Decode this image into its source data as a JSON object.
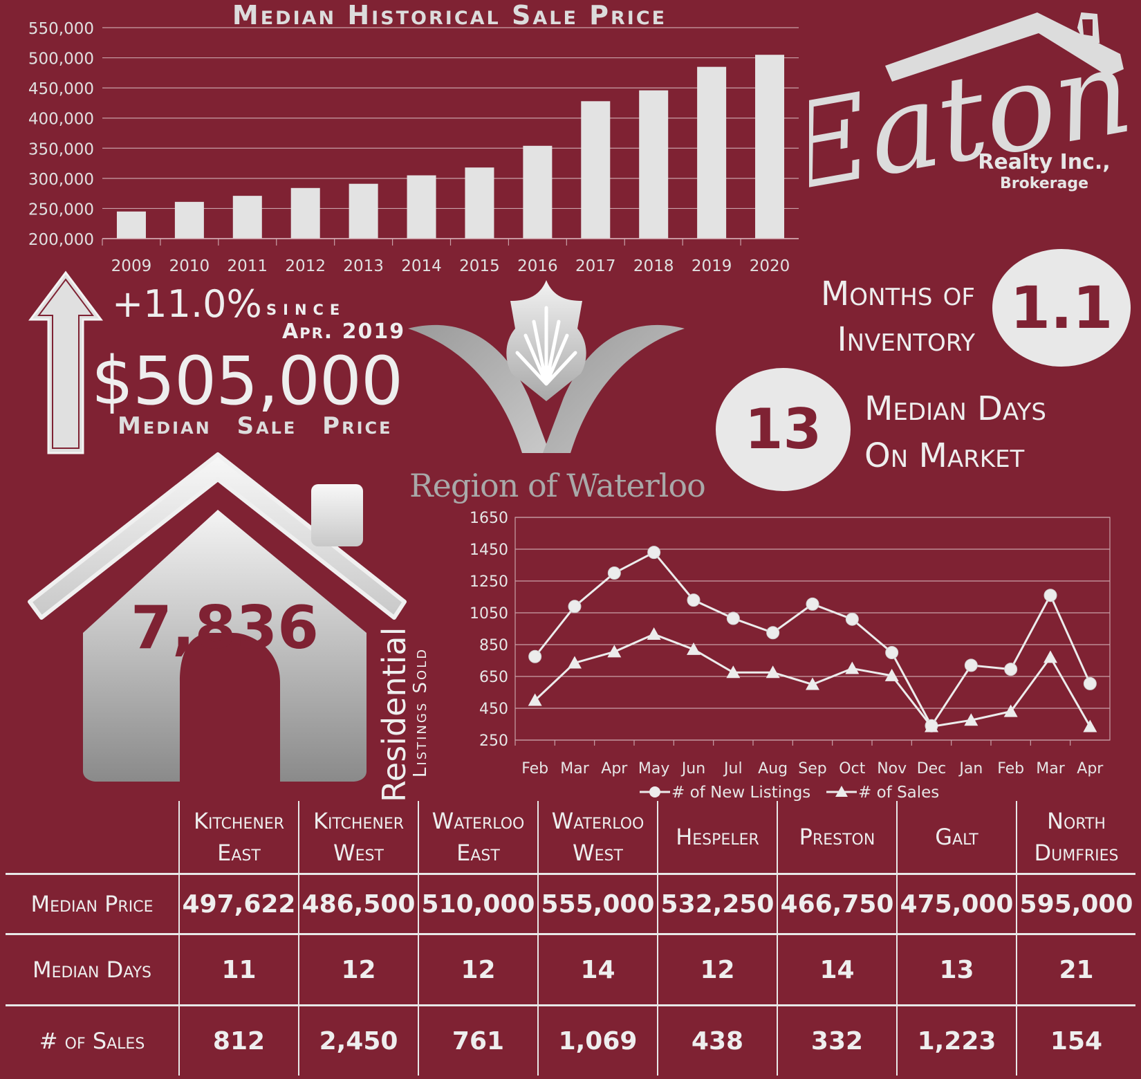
{
  "chart_data": [
    {
      "type": "bar",
      "title": "Median Historical Sale Price",
      "categories": [
        "2009",
        "2010",
        "2011",
        "2012",
        "2013",
        "2014",
        "2015",
        "2016",
        "2017",
        "2018",
        "2019",
        "2020"
      ],
      "values": [
        245000,
        261000,
        271000,
        284000,
        291000,
        305000,
        318000,
        354000,
        428000,
        446000,
        485000,
        505000
      ],
      "ylim": [
        200000,
        550000
      ],
      "yticks": [
        "200,000",
        "250,000",
        "300,000",
        "350,000",
        "400,000",
        "450,000",
        "500,000",
        "550,000"
      ],
      "grid": true
    },
    {
      "type": "line",
      "categories": [
        "Feb",
        "Mar",
        "Apr",
        "May",
        "Jun",
        "Jul",
        "Aug",
        "Sep",
        "Oct",
        "Nov",
        "Dec",
        "Jan",
        "Feb",
        "Mar",
        "Apr"
      ],
      "series": [
        {
          "name": "# of New Listings",
          "marker": "circle",
          "values": [
            775,
            1090,
            1300,
            1430,
            1130,
            1015,
            925,
            1105,
            1010,
            800,
            340,
            720,
            695,
            1160,
            605
          ]
        },
        {
          "name": "# of Sales",
          "marker": "triangle",
          "values": [
            500,
            735,
            805,
            915,
            820,
            675,
            675,
            600,
            700,
            655,
            335,
            375,
            430,
            770,
            335
          ]
        }
      ],
      "ylim": [
        250,
        1650
      ],
      "yticks": [
        "1650",
        "1450",
        "1250",
        "1050",
        "850",
        "650",
        "450",
        "250"
      ],
      "legend": "bottom",
      "grid": true
    }
  ],
  "headline": {
    "change": "+11.0%",
    "since_word": "since",
    "since_date": "Apr. 2019",
    "median_price": "$505,000",
    "median_price_caption": "Median Sale Price"
  },
  "inventory": {
    "label_line1": "Months of",
    "label_line2": "Inventory",
    "value": "1.1"
  },
  "days_on_market": {
    "value": "13",
    "label_line1": "Median Days",
    "label_line2": "On Market"
  },
  "region": {
    "name": "Region of Waterloo"
  },
  "brand": {
    "name": "Eaton",
    "line1": "Realty Inc.,",
    "line2": "Brokerage"
  },
  "sold": {
    "value": "7,836",
    "label1": "Residential",
    "label2": "Listings Sold"
  },
  "table": {
    "columns": [
      {
        "line1": "Kitchener",
        "line2": "East"
      },
      {
        "line1": "Kitchener",
        "line2": "West"
      },
      {
        "line1": "Waterloo",
        "line2": "East"
      },
      {
        "line1": "Waterloo",
        "line2": "West"
      },
      {
        "line1": "Hespeler",
        "line2": ""
      },
      {
        "line1": "Preston",
        "line2": ""
      },
      {
        "line1": "Galt",
        "line2": ""
      },
      {
        "line1": "North",
        "line2": "Dumfries"
      }
    ],
    "rows": [
      {
        "label": "Median Price",
        "values": [
          "497,622",
          "486,500",
          "510,000",
          "555,000",
          "532,250",
          "466,750",
          "475,000",
          "595,000"
        ]
      },
      {
        "label": "Median Days",
        "values": [
          "11",
          "12",
          "12",
          "14",
          "12",
          "14",
          "13",
          "21"
        ]
      },
      {
        "label": "# of Sales",
        "values": [
          "812",
          "2,450",
          "761",
          "1,069",
          "438",
          "332",
          "1,223",
          "154"
        ]
      }
    ]
  }
}
